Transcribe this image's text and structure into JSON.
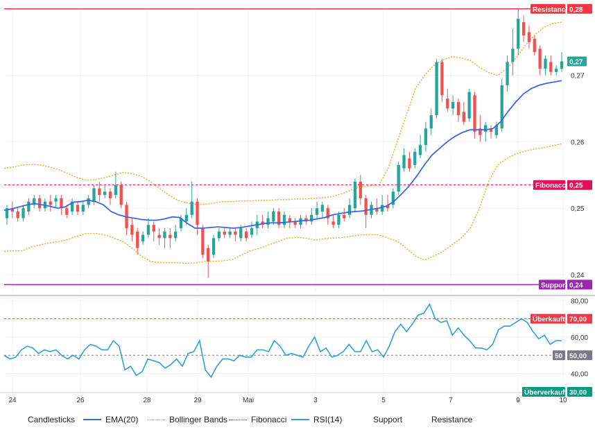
{
  "chart_data": {
    "type": "candlestick",
    "x_ticks": [
      "24",
      "26",
      "28",
      "29",
      "Mai",
      "3",
      "5",
      "7",
      "9",
      "10"
    ],
    "price_axis": {
      "ticks": [
        "0,28",
        "0,27",
        "0,26",
        "0,25",
        "0,24"
      ],
      "ylim": [
        0.2375,
        0.2805
      ]
    },
    "rsi_axis": {
      "ticks": [
        "80,00",
        "70,00",
        "60,00",
        "50,00",
        "40,00",
        "30,00"
      ],
      "ylim": [
        30,
        82
      ]
    },
    "levels": {
      "resistance": {
        "label": "Resistance",
        "value": 0.28,
        "value_text": "0,28",
        "color": "#f23645"
      },
      "fibonacci": {
        "label": "Fibonacci",
        "value": 0.2535,
        "value_text": "0,25",
        "color": "#e0105b"
      },
      "support": {
        "label": "Support",
        "value": 0.2385,
        "value_text": "0,24",
        "color": "#9c27b0"
      },
      "last_price": {
        "value": 0.2721,
        "value_text": "0,27",
        "color": "#26a69a"
      }
    },
    "rsi_levels": {
      "overbought": {
        "label": "Überkauft",
        "value": 70,
        "value_text": "70,00",
        "color": "#f23645"
      },
      "middle": {
        "label": "50",
        "value": 50,
        "value_text": "50,00",
        "color": "#787b86"
      },
      "oversold": {
        "label": "Überverkauft",
        "value": 30,
        "value_text": "30,00",
        "color": "#089981"
      }
    },
    "candles": [
      [
        0.2485,
        0.25,
        0.2475,
        0.2505
      ],
      [
        0.25,
        0.2495,
        0.2485,
        0.251
      ],
      [
        0.2495,
        0.2485,
        0.248,
        0.25
      ],
      [
        0.2485,
        0.25,
        0.248,
        0.2505
      ],
      [
        0.2495,
        0.251,
        0.249,
        0.2515
      ],
      [
        0.2505,
        0.2515,
        0.25,
        0.252
      ],
      [
        0.2515,
        0.25,
        0.2495,
        0.252
      ],
      [
        0.25,
        0.251,
        0.2495,
        0.2515
      ],
      [
        0.251,
        0.2505,
        0.2495,
        0.252
      ],
      [
        0.251,
        0.2515,
        0.25,
        0.252
      ],
      [
        0.2515,
        0.25,
        0.249,
        0.252
      ],
      [
        0.25,
        0.249,
        0.2485,
        0.2505
      ],
      [
        0.2495,
        0.251,
        0.249,
        0.2515
      ],
      [
        0.2505,
        0.2495,
        0.249,
        0.251
      ],
      [
        0.2495,
        0.2505,
        0.249,
        0.251
      ],
      [
        0.2505,
        0.2515,
        0.25,
        0.252
      ],
      [
        0.251,
        0.253,
        0.2505,
        0.2535
      ],
      [
        0.253,
        0.252,
        0.251,
        0.254
      ],
      [
        0.252,
        0.2525,
        0.2515,
        0.2535
      ],
      [
        0.2525,
        0.2515,
        0.2505,
        0.253
      ],
      [
        0.252,
        0.2535,
        0.2515,
        0.2555
      ],
      [
        0.2535,
        0.2505,
        0.25,
        0.254
      ],
      [
        0.2505,
        0.247,
        0.246,
        0.251
      ],
      [
        0.2475,
        0.246,
        0.245,
        0.2485
      ],
      [
        0.2465,
        0.244,
        0.243,
        0.247
      ],
      [
        0.245,
        0.246,
        0.2445,
        0.2465
      ],
      [
        0.246,
        0.2475,
        0.2455,
        0.2485
      ],
      [
        0.2475,
        0.2465,
        0.245,
        0.248
      ],
      [
        0.246,
        0.2455,
        0.2445,
        0.247
      ],
      [
        0.2455,
        0.2465,
        0.244,
        0.247
      ],
      [
        0.246,
        0.2455,
        0.244,
        0.247
      ],
      [
        0.2455,
        0.2465,
        0.245,
        0.2475
      ],
      [
        0.247,
        0.2485,
        0.2465,
        0.249
      ],
      [
        0.248,
        0.249,
        0.2475,
        0.25
      ],
      [
        0.249,
        0.251,
        0.2485,
        0.254
      ],
      [
        0.251,
        0.2475,
        0.246,
        0.2515
      ],
      [
        0.247,
        0.243,
        0.2425,
        0.2475
      ],
      [
        0.244,
        0.242,
        0.2395,
        0.2445
      ],
      [
        0.243,
        0.2455,
        0.2425,
        0.246
      ],
      [
        0.2455,
        0.2465,
        0.245,
        0.247
      ],
      [
        0.2465,
        0.246,
        0.2455,
        0.247
      ],
      [
        0.246,
        0.2465,
        0.2455,
        0.247
      ],
      [
        0.2465,
        0.246,
        0.245,
        0.247
      ],
      [
        0.2455,
        0.247,
        0.245,
        0.2475
      ],
      [
        0.2465,
        0.2455,
        0.245,
        0.247
      ],
      [
        0.246,
        0.247,
        0.2455,
        0.248
      ],
      [
        0.247,
        0.248,
        0.246,
        0.249
      ],
      [
        0.248,
        0.2475,
        0.247,
        0.249
      ],
      [
        0.2475,
        0.2485,
        0.247,
        0.2495
      ],
      [
        0.248,
        0.2495,
        0.2475,
        0.25
      ],
      [
        0.2495,
        0.2475,
        0.247,
        0.25
      ],
      [
        0.2475,
        0.249,
        0.247,
        0.2495
      ],
      [
        0.2485,
        0.248,
        0.247,
        0.249
      ],
      [
        0.248,
        0.2475,
        0.247,
        0.2485
      ],
      [
        0.2475,
        0.2485,
        0.247,
        0.249
      ],
      [
        0.2485,
        0.248,
        0.2475,
        0.249
      ],
      [
        0.248,
        0.249,
        0.2475,
        0.25
      ],
      [
        0.249,
        0.25,
        0.2485,
        0.251
      ],
      [
        0.2495,
        0.2505,
        0.2485,
        0.251
      ],
      [
        0.25,
        0.2485,
        0.2475,
        0.2505
      ],
      [
        0.248,
        0.2475,
        0.247,
        0.249
      ],
      [
        0.2475,
        0.249,
        0.247,
        0.2495
      ],
      [
        0.249,
        0.2485,
        0.248,
        0.25
      ],
      [
        0.249,
        0.2505,
        0.2485,
        0.2515
      ],
      [
        0.25,
        0.254,
        0.2495,
        0.2545
      ],
      [
        0.254,
        0.2515,
        0.2505,
        0.255
      ],
      [
        0.2515,
        0.249,
        0.247,
        0.252
      ],
      [
        0.249,
        0.2505,
        0.2485,
        0.251
      ],
      [
        0.25,
        0.2495,
        0.249,
        0.2515
      ],
      [
        0.2495,
        0.2505,
        0.249,
        0.252
      ],
      [
        0.2505,
        0.25,
        0.2495,
        0.252
      ],
      [
        0.2505,
        0.2525,
        0.25,
        0.253
      ],
      [
        0.2525,
        0.2565,
        0.252,
        0.257
      ],
      [
        0.256,
        0.258,
        0.2555,
        0.259
      ],
      [
        0.2575,
        0.256,
        0.2555,
        0.2585
      ],
      [
        0.2565,
        0.2585,
        0.256,
        0.259
      ],
      [
        0.258,
        0.2595,
        0.2575,
        0.261
      ],
      [
        0.2595,
        0.262,
        0.2585,
        0.263
      ],
      [
        0.262,
        0.264,
        0.261,
        0.265
      ],
      [
        0.264,
        0.272,
        0.2635,
        0.2725
      ],
      [
        0.272,
        0.267,
        0.266,
        0.2725
      ],
      [
        0.2665,
        0.265,
        0.2645,
        0.268
      ],
      [
        0.265,
        0.266,
        0.264,
        0.267
      ],
      [
        0.266,
        0.264,
        0.263,
        0.2665
      ],
      [
        0.2645,
        0.263,
        0.2625,
        0.266
      ],
      [
        0.2635,
        0.2675,
        0.263,
        0.268
      ],
      [
        0.267,
        0.2615,
        0.2605,
        0.2675
      ],
      [
        0.262,
        0.261,
        0.26,
        0.264
      ],
      [
        0.2615,
        0.2625,
        0.26,
        0.263
      ],
      [
        0.262,
        0.2615,
        0.2605,
        0.2625
      ],
      [
        0.261,
        0.2625,
        0.2605,
        0.263
      ],
      [
        0.262,
        0.2685,
        0.2615,
        0.2695
      ],
      [
        0.2685,
        0.272,
        0.2675,
        0.273
      ],
      [
        0.272,
        0.274,
        0.27,
        0.277
      ],
      [
        0.274,
        0.2785,
        0.273,
        0.28
      ],
      [
        0.278,
        0.276,
        0.275,
        0.279
      ],
      [
        0.2765,
        0.275,
        0.274,
        0.2775
      ],
      [
        0.2755,
        0.2735,
        0.273,
        0.276
      ],
      [
        0.274,
        0.271,
        0.27,
        0.2745
      ],
      [
        0.271,
        0.2725,
        0.27,
        0.273
      ],
      [
        0.272,
        0.2705,
        0.27,
        0.273
      ],
      [
        0.2705,
        0.271,
        0.27,
        0.2715
      ],
      [
        0.271,
        0.2721,
        0.2705,
        0.2735
      ]
    ],
    "ema20": [
      0.2497,
      0.2499,
      0.2502,
      0.2505,
      0.2507,
      0.2505,
      0.2503,
      0.25,
      0.2502,
      0.2509,
      0.251,
      0.2512,
      0.251,
      0.2505,
      0.2495,
      0.249,
      0.2487,
      0.2485,
      0.2483,
      0.2482,
      0.2482,
      0.2484,
      0.2487,
      0.2486,
      0.2477,
      0.247,
      0.247,
      0.2471,
      0.2472,
      0.2471,
      0.247,
      0.2471,
      0.2473,
      0.2475,
      0.2477,
      0.2478,
      0.2478,
      0.2479,
      0.248,
      0.2481,
      0.2482,
      0.2484,
      0.2486,
      0.249,
      0.2492,
      0.2494,
      0.2495,
      0.2496,
      0.2498,
      0.25,
      0.2503,
      0.251,
      0.2521,
      0.2533,
      0.2548,
      0.2565,
      0.258,
      0.259,
      0.26,
      0.2608,
      0.2614,
      0.2618,
      0.2618,
      0.2618,
      0.262,
      0.263,
      0.2646,
      0.266,
      0.2672,
      0.268,
      0.2685,
      0.2688,
      0.269,
      0.2692
    ],
    "bb_upper": [
      0.256,
      0.2562,
      0.2565,
      0.2566,
      0.2565,
      0.2562,
      0.2558,
      0.2552,
      0.2546,
      0.2542,
      0.2543,
      0.2546,
      0.255,
      0.2554,
      0.2552,
      0.2548,
      0.254,
      0.253,
      0.252,
      0.2512,
      0.2508,
      0.2506,
      0.2506,
      0.2508,
      0.251,
      0.251,
      0.2511,
      0.2511,
      0.2512,
      0.2512,
      0.2513,
      0.2513,
      0.2514,
      0.2514,
      0.2515,
      0.2516,
      0.2518,
      0.2522,
      0.2528,
      0.2532,
      0.2534,
      0.2535,
      0.256,
      0.26,
      0.264,
      0.268,
      0.27,
      0.2715,
      0.2723,
      0.2728,
      0.2726,
      0.2722,
      0.2712,
      0.2704,
      0.27,
      0.271,
      0.2726,
      0.2745,
      0.276,
      0.2772,
      0.2778,
      0.278
    ],
    "bb_lower": [
      0.2435,
      0.2436,
      0.2436,
      0.2442,
      0.2445,
      0.2448,
      0.245,
      0.2453,
      0.2458,
      0.2462,
      0.2462,
      0.246,
      0.2455,
      0.245,
      0.244,
      0.2428,
      0.242,
      0.2418,
      0.2418,
      0.2418,
      0.2417,
      0.2418,
      0.242,
      0.242,
      0.2421,
      0.2423,
      0.243,
      0.2436,
      0.244,
      0.2445,
      0.245,
      0.2455,
      0.2456,
      0.2455,
      0.2452,
      0.2454,
      0.2455,
      0.2456,
      0.2458,
      0.246,
      0.246,
      0.246,
      0.2455,
      0.245,
      0.244,
      0.2428,
      0.2422,
      0.2428,
      0.2435,
      0.2445,
      0.2455,
      0.247,
      0.25,
      0.254,
      0.2565,
      0.2575,
      0.2582,
      0.2586,
      0.2589,
      0.2591,
      0.2594,
      0.2597
    ],
    "rsi": [
      50,
      48,
      49,
      53,
      55,
      54,
      51,
      53,
      52,
      53,
      50,
      48,
      50,
      48,
      53,
      56,
      55,
      53,
      53,
      58,
      55,
      42,
      44,
      39,
      41,
      48,
      47,
      46,
      43,
      45,
      48,
      44,
      51,
      52,
      58,
      42,
      38,
      44,
      48,
      48,
      47,
      50,
      49,
      49,
      53,
      53,
      52,
      58,
      55,
      50,
      51,
      50,
      49,
      55,
      60,
      52,
      54,
      49,
      50,
      52,
      56,
      52,
      52,
      58,
      52,
      53,
      49,
      55,
      63,
      67,
      63,
      67,
      72,
      73,
      78,
      70,
      68,
      69,
      61,
      65,
      61,
      58,
      54,
      54,
      53,
      56,
      64,
      66,
      66,
      68,
      70,
      68,
      63,
      59,
      61,
      56,
      58,
      58
    ],
    "legend": [
      {
        "label": "Candlesticks",
        "color": "#26a69a",
        "style": "none"
      },
      {
        "label": "EMA(20)",
        "color": "#3a66e0",
        "style": "solid"
      },
      {
        "label": "Bollinger Bands",
        "color": "#f7a21b",
        "style": "dotted"
      },
      {
        "label": "Fibonacci",
        "color": "#e0105b",
        "style": "dotted"
      },
      {
        "label": "RSI(14)",
        "color": "#2e9fd9",
        "style": "solid"
      },
      {
        "label": "Support",
        "color": "#9c27b0",
        "style": "none"
      },
      {
        "label": "Resistance",
        "color": "#f23645",
        "style": "none"
      }
    ]
  }
}
